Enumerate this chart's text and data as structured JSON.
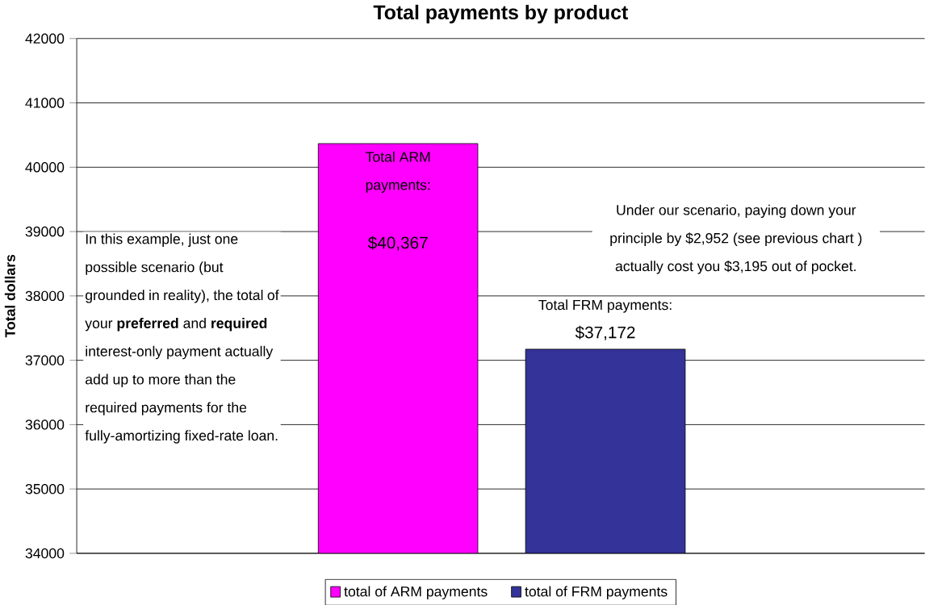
{
  "chart_data": {
    "type": "bar",
    "title": "Total payments by product",
    "ylabel": "Total dollars",
    "categories": [
      null,
      null
    ],
    "series": [
      {
        "name": "total of ARM payments",
        "color": "#ff00ff",
        "values": [
          40367,
          null
        ],
        "value_labels": [
          "$40,367",
          null
        ]
      },
      {
        "name": "total of FRM payments",
        "color": "#333399",
        "values": [
          null,
          37172
        ],
        "value_labels": [
          null,
          "$37,172"
        ]
      }
    ],
    "ylim": [
      34000,
      42000
    ],
    "yticks": [
      34000,
      35000,
      36000,
      37000,
      38000,
      39000,
      40000,
      41000,
      42000
    ],
    "grid": "y",
    "legend": "bottom",
    "annotations": [
      "In this example, just one possible scenario (but grounded in reality), the total of your **preferred** and **required** interest-only payment actually add up to more than the required payments for the fully-amortizing fixed-rate loan.",
      "Total ARM payments:",
      "Under our scenario, paying down your principle by $2,952 (see previous chart ) actually cost you $3,195 out of pocket.",
      "Total FRM payments:"
    ]
  }
}
